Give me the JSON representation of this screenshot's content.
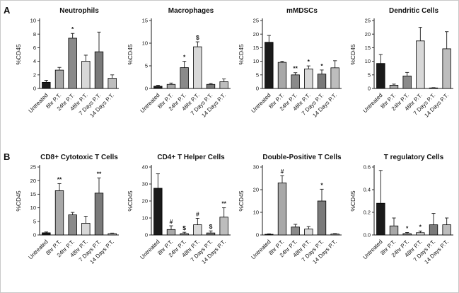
{
  "panel_a": {
    "label": "A"
  },
  "panel_b": {
    "label": "B"
  },
  "bar_colors": [
    "#1a1a1a",
    "#a8a8a8",
    "#8a8a8a",
    "#d8d8d8",
    "#7a7a7a",
    "#bdbdbd"
  ],
  "axis_color": "#1a1a1a",
  "chart_data": [
    {
      "panel": "A",
      "type": "bar",
      "title": "Neutrophils",
      "ylabel": "%CD45",
      "ylim": [
        0,
        10
      ],
      "yticks": [
        "0",
        "2",
        "4",
        "6",
        "8",
        "10"
      ],
      "grid": false,
      "legend": "none",
      "categories": [
        "Untreated",
        "8hr P.T.",
        "24hr P.T.",
        "48hr P.T.",
        "7 Days P.T.",
        "14 Days P.T."
      ],
      "values": [
        0.9,
        2.7,
        7.4,
        4.0,
        5.4,
        1.5
      ],
      "errors": [
        0.3,
        0.4,
        0.7,
        0.9,
        2.9,
        0.5
      ],
      "sig": [
        "",
        "",
        "*",
        "",
        "",
        ""
      ]
    },
    {
      "panel": "A",
      "type": "bar",
      "title": "Macrophages",
      "ylabel": "%CD45",
      "ylim": [
        0,
        15
      ],
      "yticks": [
        "0",
        "5",
        "10",
        "15"
      ],
      "grid": false,
      "legend": "none",
      "categories": [
        "Untreated",
        "8hr P.T.",
        "24hr P.T.",
        "48hr P.T.",
        "7 Days P.T.",
        "14 Days P.T."
      ],
      "values": [
        0.5,
        0.9,
        4.6,
        9.2,
        0.9,
        1.5
      ],
      "errors": [
        0.2,
        0.3,
        1.4,
        1.1,
        0.2,
        0.6
      ],
      "sig": [
        "",
        "",
        "*",
        "$",
        "",
        ""
      ]
    },
    {
      "panel": "A",
      "type": "bar",
      "title": "mMDSCs",
      "ylabel": "%CD45",
      "ylim": [
        0,
        25
      ],
      "yticks": [
        "0",
        "5",
        "10",
        "15",
        "20",
        "25"
      ],
      "grid": false,
      "legend": "none",
      "categories": [
        "Untreated",
        "8hr P.T.",
        "24hr P.T.",
        "48hr P.T.",
        "7 Days P.T.",
        "14 Days P.T."
      ],
      "values": [
        17.0,
        9.6,
        5.0,
        7.2,
        5.3,
        7.6
      ],
      "errors": [
        2.5,
        0.4,
        0.8,
        1.1,
        1.5,
        2.6
      ],
      "sig": [
        "",
        "",
        "**",
        "*",
        "*",
        ""
      ]
    },
    {
      "panel": "A",
      "type": "bar",
      "title": "Dendritic Cells",
      "ylabel": "%CD45",
      "ylim": [
        0,
        25
      ],
      "yticks": [
        "0",
        "5",
        "10",
        "15",
        "20",
        "25"
      ],
      "grid": false,
      "legend": "none",
      "categories": [
        "Untreated",
        "8hr P.T.",
        "24hr P.T.",
        "48hr P.T.",
        "7 Days P.T.",
        "14 Days P.T."
      ],
      "values": [
        9.2,
        1.2,
        4.6,
        17.5,
        0.2,
        14.6
      ],
      "errors": [
        3.3,
        0.4,
        1.3,
        5.0,
        0.1,
        6.3
      ],
      "sig": [
        "",
        "",
        "",
        "",
        "",
        ""
      ]
    },
    {
      "panel": "B",
      "type": "bar",
      "title": "CD8+ Cytotoxic T Cells",
      "ylabel": "%CD45",
      "ylim": [
        0,
        25
      ],
      "yticks": [
        "0",
        "5",
        "10",
        "15",
        "20",
        "25"
      ],
      "grid": false,
      "legend": "none",
      "categories": [
        "Untreated",
        "8hr P.T.",
        "24hr P.T.",
        "48hr P.T.",
        "7 Days P.T.",
        "14 Days P.T."
      ],
      "values": [
        0.8,
        16.3,
        7.4,
        4.3,
        15.4,
        0.5
      ],
      "errors": [
        0.3,
        2.6,
        0.9,
        2.6,
        5.6,
        0.2
      ],
      "sig": [
        "",
        "**",
        "",
        "",
        "**",
        ""
      ]
    },
    {
      "panel": "B",
      "type": "bar",
      "title": "CD4+ T Helper Cells",
      "ylabel": "%CD45",
      "ylim": [
        0,
        40
      ],
      "yticks": [
        "0",
        "10",
        "20",
        "30",
        "40"
      ],
      "grid": false,
      "legend": "none",
      "categories": [
        "Untreated",
        "8hr P.T.",
        "24hr P.T.",
        "48hr P.T.",
        "7 Days P.T.",
        "14 Days P.T."
      ],
      "values": [
        27.5,
        3.2,
        0.8,
        6.0,
        1.2,
        10.5
      ],
      "errors": [
        8.5,
        2.2,
        0.8,
        3.8,
        1.2,
        5.5
      ],
      "sig": [
        "",
        "#",
        "$",
        "#",
        "$",
        "**"
      ]
    },
    {
      "panel": "B",
      "type": "bar",
      "title": "Double-Positive T Cells",
      "ylabel": "%CD45",
      "ylim": [
        0,
        30
      ],
      "yticks": [
        "0",
        "10",
        "20",
        "30"
      ],
      "grid": false,
      "legend": "none",
      "categories": [
        "Untreated",
        "8hr P.T.",
        "24hr P.T.",
        "48hr P.T.",
        "7 Days P.T.",
        "14 Days P.T."
      ],
      "values": [
        0.3,
        23.0,
        3.5,
        2.6,
        15.0,
        0.4
      ],
      "errors": [
        0.2,
        3.2,
        1.2,
        1.1,
        5.2,
        0.2
      ],
      "sig": [
        "",
        "#",
        "",
        "",
        "*",
        ""
      ]
    },
    {
      "panel": "B",
      "type": "bar",
      "title": "T regulatory Cells",
      "ylabel": "%CD45",
      "ylim": [
        0,
        0.6
      ],
      "yticks": [
        "0.0",
        "0.2",
        "0.4",
        "0.6"
      ],
      "grid": false,
      "legend": "none",
      "categories": [
        "Untreated",
        "8hr P.T.",
        "24hr P.T.",
        "48hr P.T.",
        "7 Days P.T.",
        "14 Days P.T."
      ],
      "values": [
        0.28,
        0.08,
        0.012,
        0.02,
        0.09,
        0.09
      ],
      "errors": [
        0.29,
        0.07,
        0.01,
        0.015,
        0.1,
        0.06
      ],
      "sig": [
        "",
        "",
        "*",
        "*",
        "",
        ""
      ]
    }
  ]
}
